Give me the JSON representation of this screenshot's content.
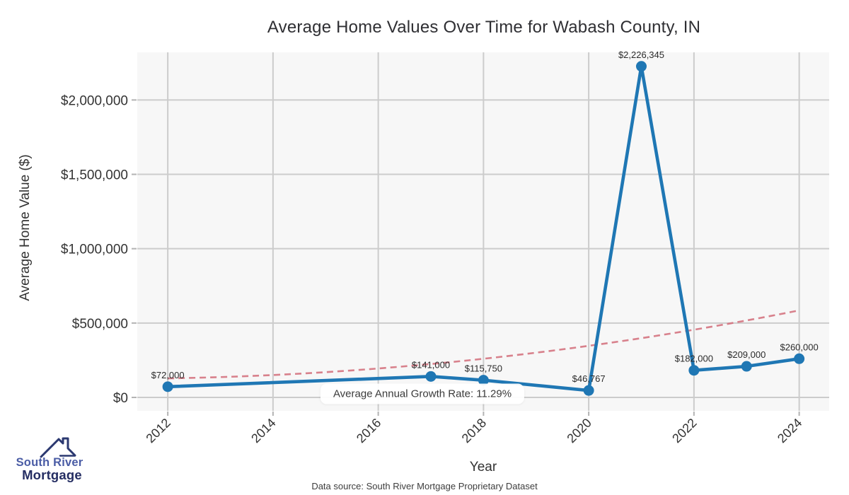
{
  "page": {
    "footer": "Data source: South River Mortgage Proprietary Dataset",
    "logo": {
      "line1": "South River",
      "line2": "Mortgage"
    }
  },
  "chart_data": {
    "type": "line",
    "title": "Average Home Values Over Time for Wabash County, IN",
    "xlabel": "Year",
    "ylabel": "Average Home Value ($)",
    "grid": true,
    "legend": "none",
    "plot_bg": "#f7f7f7",
    "grid_color": "#cccccc",
    "tick_color": "#b3b3b3",
    "text_color": "#333333",
    "xlim": [
      2011.42,
      2024.57
    ],
    "ylim": [
      -90400,
      2320400
    ],
    "x_ticks": [
      "2012",
      "2014",
      "2016",
      "2018",
      "2020",
      "2022",
      "2024"
    ],
    "y_ticks": [
      {
        "value": 0,
        "label": "$0"
      },
      {
        "value": 500000,
        "label": "$500,000"
      },
      {
        "value": 1000000,
        "label": "$1,000,000"
      },
      {
        "value": 1500000,
        "label": "$1,500,000"
      },
      {
        "value": 2000000,
        "label": "$2,000,000"
      }
    ],
    "series": [
      {
        "name": "Average Home Value",
        "color": "#1f77b4",
        "points": [
          {
            "x": 2012,
            "y": 72000,
            "label": "$72,000"
          },
          {
            "x": 2017,
            "y": 141000,
            "label": "$141,000"
          },
          {
            "x": 2018,
            "y": 115750,
            "label": "$115,750"
          },
          {
            "x": 2020,
            "y": 46767,
            "label": "$46,767"
          },
          {
            "x": 2021,
            "y": 2226345,
            "label": "$2,226,345"
          },
          {
            "x": 2022,
            "y": 182000,
            "label": "$182,000"
          },
          {
            "x": 2023,
            "y": 209000,
            "label": "$209,000"
          },
          {
            "x": 2024,
            "y": 260000,
            "label": "$260,000"
          }
        ]
      }
    ],
    "trendline": {
      "style": "dashed",
      "color": "#d4737f",
      "points": [
        {
          "x": 2012,
          "y": 128000
        },
        {
          "x": 2018,
          "y": 260000
        },
        {
          "x": 2024,
          "y": 585000
        }
      ]
    },
    "annotation": {
      "text": "Average Annual Growth Rate: 11.29%"
    }
  }
}
